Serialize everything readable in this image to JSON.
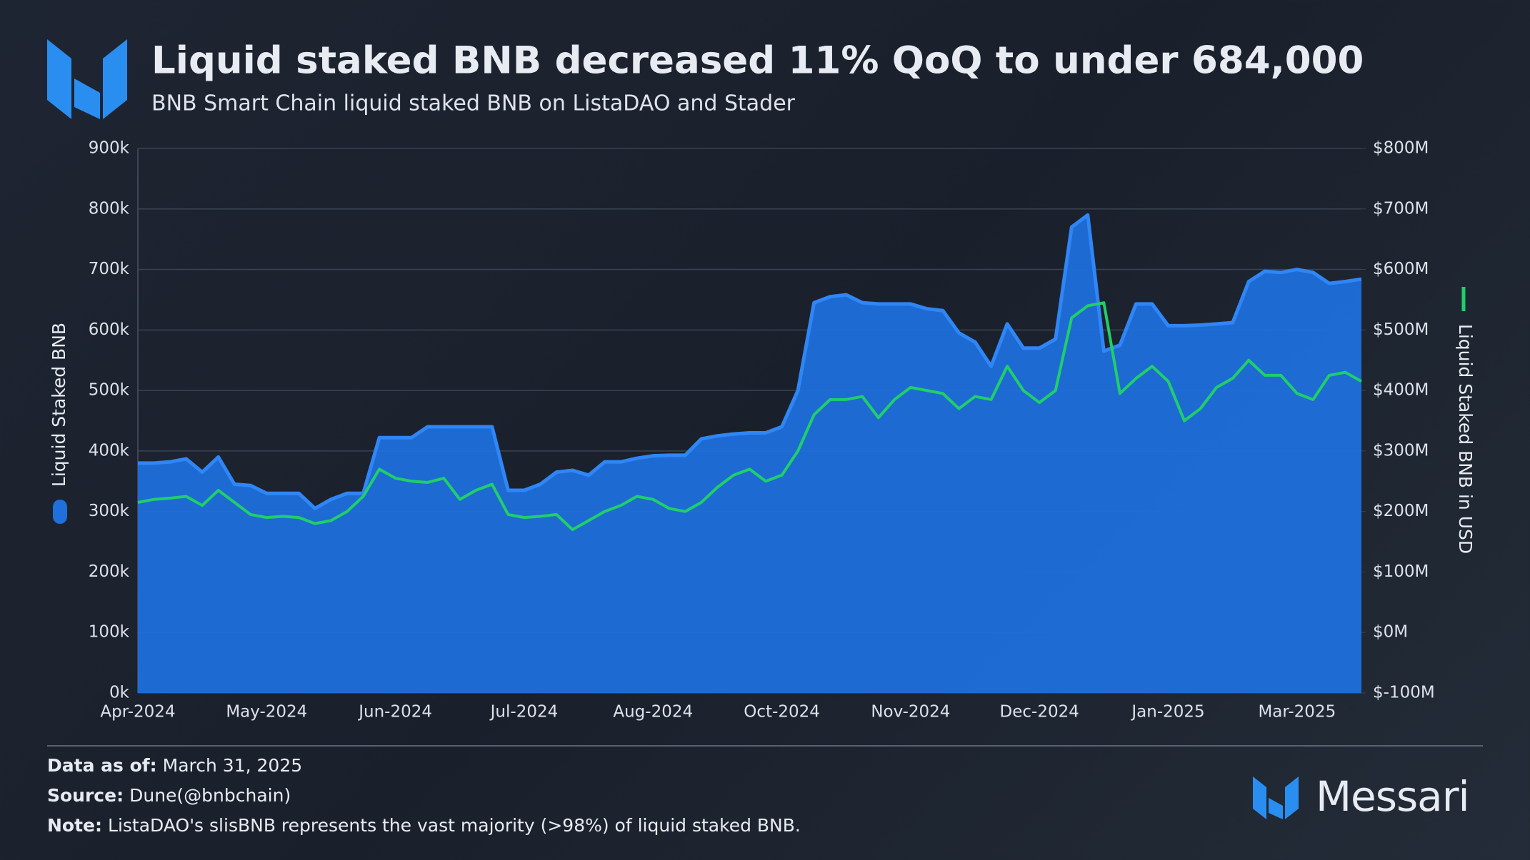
{
  "chart_data": {
    "type": "area",
    "title": "Liquid staked BNB decreased 11% QoQ to under 684,000",
    "subtitle": "BNB Smart Chain liquid staked BNB on ListaDAO and Stader",
    "categories": [
      "Apr-2024",
      null,
      null,
      null,
      null,
      null,
      null,
      null,
      "May-2024",
      null,
      null,
      null,
      null,
      null,
      null,
      null,
      "Jun-2024",
      null,
      null,
      null,
      null,
      null,
      null,
      null,
      "Jul-2024",
      null,
      null,
      null,
      null,
      null,
      null,
      null,
      "Aug-2024",
      null,
      null,
      null,
      null,
      null,
      null,
      null,
      "Oct-2024",
      null,
      null,
      null,
      null,
      null,
      null,
      null,
      "Nov-2024",
      null,
      null,
      null,
      null,
      null,
      null,
      null,
      "Dec-2024",
      null,
      null,
      null,
      null,
      null,
      null,
      null,
      "Jan-2025",
      null,
      null,
      null,
      null,
      null,
      null,
      null,
      "Mar-2025",
      null,
      null,
      null,
      null
    ],
    "series": [
      {
        "name": "Liquid Staked BNB",
        "type": "area",
        "color": "#1f6fdc",
        "values": [
          380000,
          380000,
          382000,
          387000,
          365000,
          390000,
          345000,
          343000,
          330000,
          330000,
          330000,
          305000,
          320000,
          330000,
          330000,
          422000,
          422000,
          422000,
          440000,
          440000,
          440000,
          440000,
          440000,
          335000,
          335000,
          345000,
          365000,
          368000,
          360000,
          382000,
          382000,
          388000,
          392000,
          393000,
          393000,
          420000,
          425000,
          428000,
          430000,
          430000,
          440000,
          500000,
          645000,
          655000,
          658000,
          645000,
          643000,
          643000,
          643000,
          635000,
          632000,
          595000,
          580000,
          540000,
          610000,
          570000,
          570000,
          585000,
          770000,
          790000,
          565000,
          575000,
          643000,
          643000,
          607000,
          607000,
          608000,
          610000,
          612000,
          680000,
          697000,
          695000,
          700000,
          695000,
          677000,
          680000,
          684000
        ]
      },
      {
        "name": "Liquid Staked BNB in USD",
        "type": "line",
        "axis": "y2",
        "color": "#1fcf6a",
        "values": [
          215000000,
          220000000,
          222000000,
          225000000,
          210000000,
          235000000,
          215000000,
          195000000,
          190000000,
          192000000,
          190000000,
          180000000,
          185000000,
          200000000,
          225000000,
          270000000,
          255000000,
          250000000,
          248000000,
          255000000,
          220000000,
          235000000,
          245000000,
          195000000,
          190000000,
          192000000,
          195000000,
          170000000,
          185000000,
          200000000,
          210000000,
          225000000,
          220000000,
          205000000,
          200000000,
          215000000,
          240000000,
          260000000,
          270000000,
          250000000,
          260000000,
          300000000,
          360000000,
          385000000,
          385000000,
          390000000,
          355000000,
          385000000,
          405000000,
          400000000,
          395000000,
          370000000,
          390000000,
          385000000,
          440000000,
          400000000,
          380000000,
          400000000,
          520000000,
          540000000,
          545000000,
          395000000,
          420000000,
          440000000,
          415000000,
          350000000,
          370000000,
          405000000,
          420000000,
          450000000,
          425000000,
          425000000,
          395000000,
          385000000,
          425000000,
          430000000,
          415000000
        ]
      }
    ],
    "ylim": [
      0,
      900000
    ],
    "yticks": [
      {
        "value": 0,
        "label": "0k"
      },
      {
        "value": 100000,
        "label": "100k"
      },
      {
        "value": 200000,
        "label": "200k"
      },
      {
        "value": 300000,
        "label": "300k"
      },
      {
        "value": 400000,
        "label": "400k"
      },
      {
        "value": 500000,
        "label": "500k"
      },
      {
        "value": 600000,
        "label": "600k"
      },
      {
        "value": 700000,
        "label": "700k"
      },
      {
        "value": 800000,
        "label": "800k"
      },
      {
        "value": 900000,
        "label": "900k"
      }
    ],
    "y2lim": [
      -100000000,
      800000000
    ],
    "y2ticks": [
      {
        "value": -100000000,
        "label": "$-100M"
      },
      {
        "value": 0,
        "label": "$0M"
      },
      {
        "value": 100000000,
        "label": "$100M"
      },
      {
        "value": 200000000,
        "label": "$200M"
      },
      {
        "value": 300000000,
        "label": "$300M"
      },
      {
        "value": 400000000,
        "label": "$400M"
      },
      {
        "value": 500000000,
        "label": "$500M"
      },
      {
        "value": 600000000,
        "label": "$600M"
      },
      {
        "value": 700000000,
        "label": "$700M"
      },
      {
        "value": 800000000,
        "label": "$800M"
      }
    ],
    "grid": true
  },
  "footer": [
    {
      "label": "Data as of:",
      "text": "March 31, 2025"
    },
    {
      "label": "Source:",
      "text": "Dune(@bnbchain)"
    },
    {
      "label": "Note:",
      "text": "ListaDAO's slisBNB represents the vast majority (>98%) of liquid staked BNB."
    }
  ],
  "brand": "Messari"
}
